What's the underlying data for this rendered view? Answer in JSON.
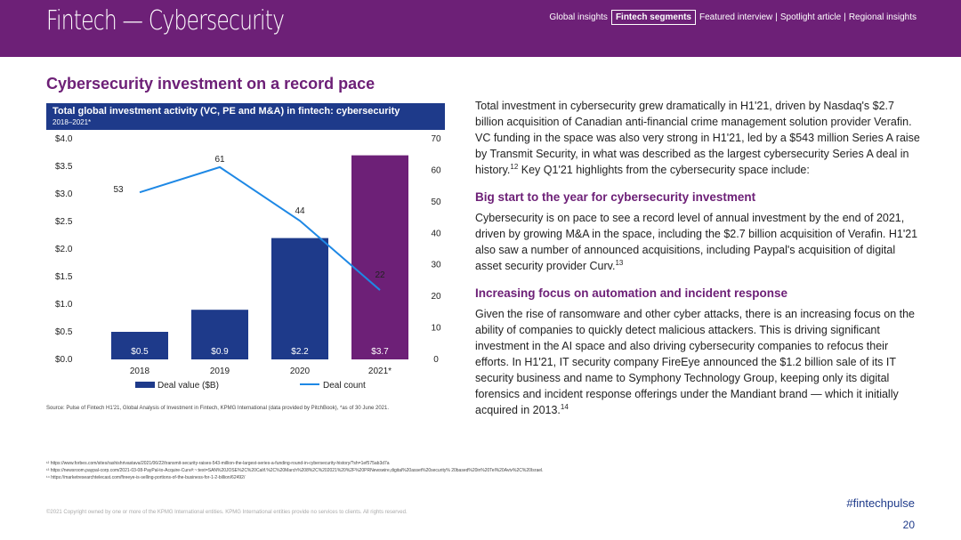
{
  "header": {
    "title": "Fintech — Cybersecurity",
    "nav": {
      "global": "Global insights",
      "fintech": "Fintech segments",
      "featured": "Featured interview",
      "spotlight": "Spotlight article",
      "regional": "Regional insights",
      "separator": "|"
    }
  },
  "section_title": "Cybersecurity investment on a record pace",
  "chart_header": {
    "title": "Total global investment activity (VC, PE and M&A) in fintech: cybersecurity",
    "subtitle": "2018–2021*"
  },
  "chart_data": {
    "type": "bar+line",
    "title": "Total global investment activity (VC, PE and M&A) in fintech: cybersecurity",
    "subtitle": "2018–2021*",
    "categories": [
      "2018",
      "2019",
      "2020",
      "2021*"
    ],
    "series": [
      {
        "name": "Deal value ($B)",
        "type": "bar",
        "axis": "left",
        "values": [
          0.5,
          0.9,
          2.2,
          3.7
        ],
        "labels": [
          "$0.5",
          "$0.9",
          "$2.2",
          "$3.7"
        ]
      },
      {
        "name": "Deal count",
        "type": "line",
        "axis": "right",
        "values": [
          53,
          61,
          44,
          22
        ]
      }
    ],
    "left_ticks": [
      "$0.0",
      "$0.5",
      "$1.0",
      "$1.5",
      "$2.0",
      "$2.5",
      "$3.0",
      "$3.5",
      "$4.0"
    ],
    "right_ticks": [
      "0",
      "10",
      "20",
      "30",
      "40",
      "50",
      "60",
      "70"
    ],
    "ylim_left": [
      0,
      4
    ],
    "ylim_right": [
      0,
      70
    ],
    "legend": [
      "Deal value ($B)",
      "Deal count"
    ],
    "legend_position": "bottom"
  },
  "source": "Source: Pulse of Fintech H1'21, Global Analysis of Investment in Fintech, KPMG International (data provided by PitchBook), *as of 30 June 2021.",
  "body": {
    "intro": "Total investment in cybersecurity grew dramatically in H1'21, driven by Nasdaq's $2.7 billion acquisition of Canadian anti-financial crime management solution provider Verafin. VC funding in the space was also very strong in H1'21, led by a $543 million Series A raise by Transmit Security, in what was described as the largest cybersecurity Series A deal in history.",
    "intro_ref": "12",
    "intro_end": " Key Q1'21 highlights from the cybersecurity space include:",
    "h1": "Big start to the year for cybersecurity investment",
    "p1": "Cybersecurity is on pace to see a record level of annual investment by the end of 2021, driven by growing M&A in the space, including the $2.7 billion acquisition of Verafin. H1'21 also saw a number of announced acquisitions, including Paypal's acquisition of digital asset security provider Curv.",
    "p1_ref": "13",
    "h2": "Increasing focus on automation and incident response",
    "p2": "Given the rise of ransomware and other cyber attacks, there is an increasing focus on the ability of companies to quickly detect malicious attackers. This is driving significant investment in the AI space and also driving cybersecurity companies to refocus their efforts. In H1'21, IT security company FireEye announced the $1.2 billion sale of its IT security business and name to Symphony Technology Group, keeping only its digital forensics and incident response offerings under the Mandiant brand — which it initially acquired in 2013.",
    "p2_ref": "14"
  },
  "footnotes": [
    "¹² https://www.forbes.com/sites/rashishrivastava/2021/06/22/transmit-security-raises-543-million-the-largest-series-a-funding-round-in-cybersecurity-history/?sh=1ef575ab3d7a",
    "¹³ https://newsroom.paypal-corp.com/2021-03-08-PayPal-to-Acquire-Curv#:~:text=SAN%20JOSE%2C%20Calif.%2C%20March%208%2C%202021%20%2F%20PRNewswire,digital%20asset%20security% 20based%20in%20Tel%20Aviv%2C%20Israel.",
    "¹⁴ https://marketresearchtelecast.com/fireeye-is-selling-portions-of-the-business-for-1-2-billion/62492/"
  ],
  "copyright": "©2021 Copyright owned by one or more of the KPMG International entities. KPMG International entities provide no services to clients. All rights reserved.",
  "hashtag": "#fintechpulse",
  "page_number": "20",
  "colors": {
    "purple": "#6d2077",
    "navy": "#1e3a8a",
    "bar_2021": "#6d2077",
    "line": "#1e88e5"
  }
}
